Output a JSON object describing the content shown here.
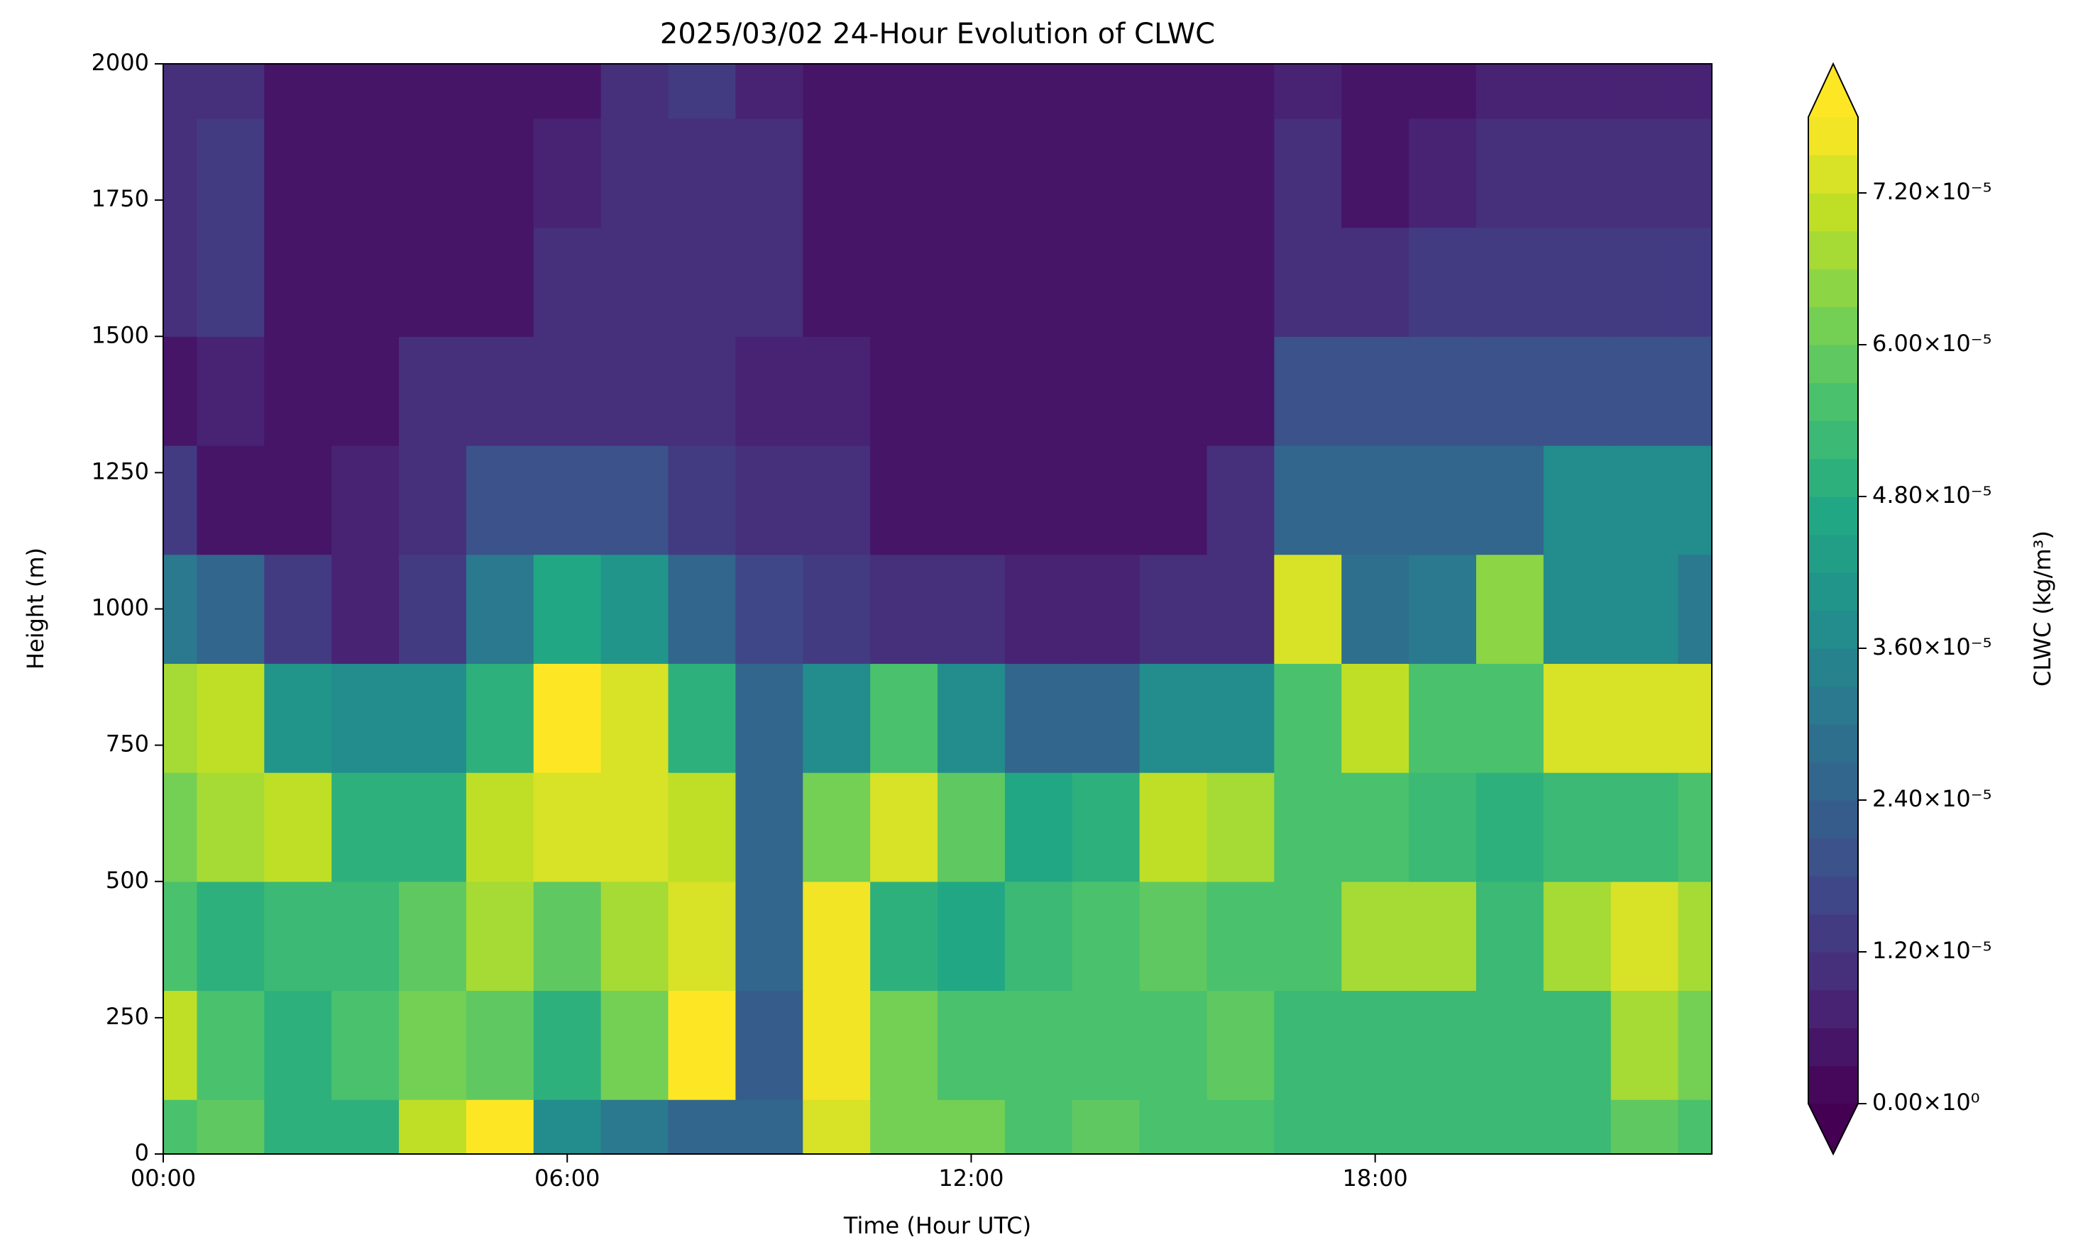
{
  "chart_data": {
    "type": "contour",
    "title": "2025/03/02 24-Hour Evolution of CLWC",
    "xlabel": "Time (Hour UTC)",
    "ylabel": "Height (m)",
    "colorbar_label": "CLWC (kg/m³)",
    "colormap": "viridis",
    "x": [
      0,
      1,
      2,
      3,
      4,
      5,
      6,
      7,
      8,
      9,
      10,
      11,
      12,
      13,
      14,
      15,
      16,
      17,
      18,
      19,
      20,
      21,
      22,
      23
    ],
    "y": [
      0,
      200,
      400,
      600,
      800,
      1000,
      1200,
      1400,
      1600,
      1800,
      2000
    ],
    "z": [
      [
        5.4e-05,
        5.7e-05,
        4.8e-05,
        4.8e-05,
        6.9e-05,
        7.8e-05,
        3.6e-05,
        3e-05,
        2.4e-05,
        2.4e-05,
        7.2e-05,
        6e-05,
        6e-05,
        5.4e-05,
        5.7e-05,
        5.4e-05,
        5.4e-05,
        5.1e-05,
        5.1e-05,
        5.1e-05,
        5.1e-05,
        5.1e-05,
        5.7e-05,
        5.4e-05
      ],
      [
        6.9e-05,
        5.4e-05,
        4.8e-05,
        5.4e-05,
        6e-05,
        5.7e-05,
        4.8e-05,
        6e-05,
        7.8e-05,
        2.1e-05,
        7.5e-05,
        6e-05,
        5.4e-05,
        5.4e-05,
        5.4e-05,
        5.4e-05,
        5.7e-05,
        5.1e-05,
        5.1e-05,
        5.1e-05,
        5.1e-05,
        5.1e-05,
        6.6e-05,
        6e-05
      ],
      [
        5.4e-05,
        4.8e-05,
        5.1e-05,
        5.1e-05,
        5.7e-05,
        6.6e-05,
        5.7e-05,
        6.6e-05,
        7.2e-05,
        2.4e-05,
        7.5e-05,
        4.8e-05,
        4.5e-05,
        5.1e-05,
        5.4e-05,
        5.7e-05,
        5.4e-05,
        5.4e-05,
        6.6e-05,
        6.6e-05,
        5.1e-05,
        6.6e-05,
        7.2e-05,
        6.6e-05
      ],
      [
        6e-05,
        6.6e-05,
        6.9e-05,
        4.8e-05,
        4.8e-05,
        6.9e-05,
        7.2e-05,
        7.2e-05,
        6.9e-05,
        2.4e-05,
        6e-05,
        7.2e-05,
        5.7e-05,
        4.5e-05,
        4.8e-05,
        6.9e-05,
        6.6e-05,
        5.4e-05,
        5.4e-05,
        5.1e-05,
        4.8e-05,
        5.1e-05,
        5.1e-05,
        5.4e-05
      ],
      [
        6.6e-05,
        6.9e-05,
        4e-05,
        3.6e-05,
        3.6e-05,
        4.8e-05,
        7.8e-05,
        7.2e-05,
        4.8e-05,
        2.6e-05,
        3.6e-05,
        5.4e-05,
        3.6e-05,
        2.4e-05,
        2.4e-05,
        3.6e-05,
        3.6e-05,
        5.4e-05,
        6.9e-05,
        5.4e-05,
        5.4e-05,
        7.2e-05,
        7.2e-05,
        7.2e-05
      ],
      [
        3e-05,
        2.4e-05,
        1.2e-05,
        8e-06,
        1.2e-05,
        3e-05,
        4.5e-05,
        4e-05,
        2.5e-05,
        1.5e-05,
        1.2e-05,
        1e-05,
        9e-06,
        8e-06,
        8e-06,
        9e-06,
        1e-05,
        7.2e-05,
        2.8e-05,
        3e-05,
        6.5e-05,
        3.6e-05,
        3.6e-05,
        3e-05
      ],
      [
        1.2e-05,
        5e-06,
        5e-06,
        8e-06,
        1e-05,
        1.8e-05,
        1.8e-05,
        1.8e-05,
        1.2e-05,
        1e-05,
        9e-06,
        5e-06,
        3e-06,
        3e-06,
        3e-06,
        3e-06,
        9e-06,
        2.5e-05,
        2.5e-05,
        2.5e-05,
        2.4e-05,
        3.6e-05,
        3.6e-05,
        3.6e-05
      ],
      [
        5e-06,
        6e-06,
        3e-06,
        5e-06,
        9e-06,
        1e-05,
        1e-05,
        9e-06,
        1e-05,
        8e-06,
        8e-06,
        3e-06,
        3e-06,
        3e-06,
        3e-06,
        3e-06,
        5e-06,
        1.8e-05,
        1.8e-05,
        1.8e-05,
        1.8e-05,
        1.8e-05,
        1.8e-05,
        1.8e-05
      ],
      [
        9e-06,
        1.2e-05,
        3e-06,
        3e-06,
        3e-06,
        5e-06,
        9e-06,
        9e-06,
        1e-05,
        9e-06,
        5e-06,
        3e-06,
        3e-06,
        3e-06,
        3e-06,
        3e-06,
        5e-06,
        1e-05,
        1e-05,
        1.2e-05,
        1.3e-05,
        1.2e-05,
        1.2e-05,
        1.2e-05
      ],
      [
        1e-05,
        1.2e-05,
        3e-06,
        3e-06,
        3e-06,
        3e-06,
        8e-06,
        9e-06,
        1e-05,
        9e-06,
        3e-06,
        3e-06,
        3e-06,
        3e-06,
        3e-06,
        3e-06,
        5e-06,
        9e-06,
        5e-06,
        8e-06,
        1e-05,
        9e-06,
        9e-06,
        9e-06
      ],
      [
        1e-05,
        1e-05,
        3e-06,
        3e-06,
        3e-06,
        3e-06,
        3e-06,
        1e-05,
        1.2e-05,
        8e-06,
        3e-06,
        3e-06,
        3e-06,
        3e-06,
        3e-06,
        3e-06,
        3e-06,
        8e-06,
        3e-06,
        3e-06,
        8e-06,
        8e-06,
        8e-06,
        6e-06
      ]
    ],
    "levels": [
      0,
      3e-06,
      6e-06,
      9e-06,
      1.2e-05,
      1.5e-05,
      1.8e-05,
      2.1e-05,
      2.4e-05,
      2.7e-05,
      3e-05,
      3.3e-05,
      3.6e-05,
      3.9e-05,
      4.2e-05,
      4.5e-05,
      4.8e-05,
      5.1e-05,
      5.4e-05,
      5.7e-05,
      6e-05,
      6.3e-05,
      6.6e-05,
      6.9e-05,
      7.2e-05,
      7.5e-05,
      7.8e-05
    ],
    "extend": "both",
    "xlim": [
      0,
      23
    ],
    "xticks": [
      {
        "value": 0,
        "label": "00:00"
      },
      {
        "value": 6,
        "label": "06:00"
      },
      {
        "value": 12,
        "label": "12:00"
      },
      {
        "value": 18,
        "label": "18:00"
      }
    ],
    "ylim": [
      0,
      2000
    ],
    "yticks": [
      0,
      250,
      500,
      750,
      1000,
      1250,
      1500,
      1750,
      2000
    ],
    "cbar_ticks": [
      {
        "value": 0,
        "label": "0.00×10⁰"
      },
      {
        "value": 1.2e-05,
        "label": "1.20×10⁻⁵"
      },
      {
        "value": 2.4e-05,
        "label": "2.40×10⁻⁵"
      },
      {
        "value": 3.6e-05,
        "label": "3.60×10⁻⁵"
      },
      {
        "value": 4.8e-05,
        "label": "4.80×10⁻⁵"
      },
      {
        "value": 6e-05,
        "label": "6.00×10⁻⁵"
      },
      {
        "value": 7.2e-05,
        "label": "7.20×10⁻⁵"
      }
    ]
  }
}
